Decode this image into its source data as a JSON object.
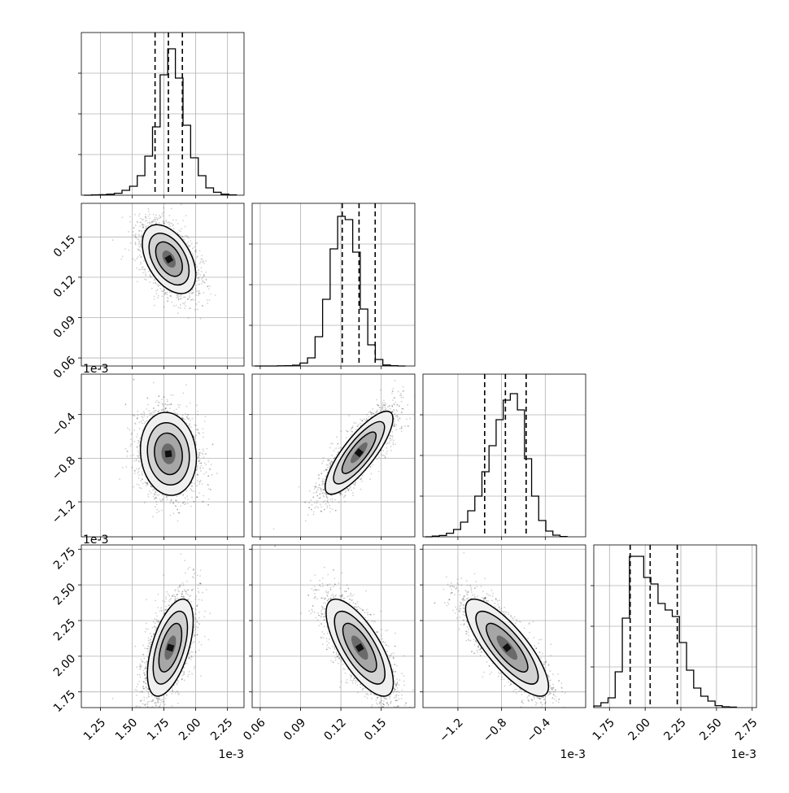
{
  "chart_data": {
    "type": "corner",
    "grid": true,
    "parameters": [
      {
        "id": "p0",
        "range": [
          1.1,
          2.38
        ],
        "scale_label": "1e-3",
        "ticks": [
          1.25,
          1.5,
          1.75,
          2.0,
          2.25
        ],
        "tick_labels": [
          "1.25",
          "1.50",
          "1.75",
          "2.00",
          "2.25"
        ]
      },
      {
        "id": "p1",
        "range": [
          0.054,
          0.175
        ],
        "scale_label": "",
        "ticks": [
          0.06,
          0.09,
          0.12,
          0.15
        ],
        "tick_labels": [
          "0.06",
          "0.09",
          "0.12",
          "0.15"
        ]
      },
      {
        "id": "p2",
        "range": [
          -1.52,
          -0.03
        ],
        "scale_label": "1e-3",
        "ticks": [
          -1.2,
          -0.8,
          -0.4
        ],
        "tick_labels": [
          "−1.2",
          "−0.8",
          "−0.4"
        ]
      },
      {
        "id": "p3",
        "range": [
          1.64,
          2.78
        ],
        "scale_label": "1e-3",
        "ticks": [
          1.75,
          2.0,
          2.25,
          2.5,
          2.75
        ],
        "tick_labels": [
          "1.75",
          "2.00",
          "2.25",
          "2.50",
          "2.75"
        ]
      }
    ],
    "histograms": [
      {
        "param": "p0",
        "bins": [
          1.12,
          1.18,
          1.24,
          1.3,
          1.36,
          1.42,
          1.48,
          1.54,
          1.6,
          1.66,
          1.72,
          1.78,
          1.84,
          1.9,
          1.96,
          2.02,
          2.08,
          2.14,
          2.2,
          2.26,
          2.32
        ],
        "counts": [
          0,
          2,
          3,
          6,
          12,
          30,
          55,
          120,
          240,
          420,
          740,
          900,
          720,
          430,
          230,
          120,
          45,
          18,
          6,
          2
        ],
        "ymax": 1000,
        "quantiles": [
          1.68,
          1.785,
          1.895
        ]
      },
      {
        "param": "p1",
        "bins": [
          0.056,
          0.0616,
          0.0672,
          0.0728,
          0.0784,
          0.084,
          0.0896,
          0.0952,
          0.1008,
          0.1064,
          0.112,
          0.1176,
          0.1232,
          0.1288,
          0.1344,
          0.14,
          0.1456,
          0.1512,
          0.1568,
          0.1624,
          0.168
        ],
        "counts": [
          0,
          0,
          0,
          1,
          2,
          5,
          18,
          50,
          180,
          410,
          720,
          920,
          900,
          700,
          350,
          130,
          40,
          6,
          2,
          0
        ],
        "ymax": 1000,
        "quantiles": [
          0.121,
          0.1335,
          0.1455
        ]
      },
      {
        "param": "p2",
        "bins": [
          -1.5,
          -1.435,
          -1.37,
          -1.305,
          -1.24,
          -1.175,
          -1.11,
          -1.045,
          -0.98,
          -0.915,
          -0.85,
          -0.785,
          -0.72,
          -0.655,
          -0.59,
          -0.525,
          -0.46,
          -0.395,
          -0.33,
          -0.265,
          -0.2
        ],
        "counts": [
          0,
          4,
          8,
          22,
          45,
          90,
          160,
          250,
          400,
          560,
          720,
          840,
          880,
          780,
          480,
          250,
          100,
          35,
          10,
          2
        ],
        "ymax": 1000,
        "quantiles": [
          -0.955,
          -0.765,
          -0.575
        ]
      },
      {
        "param": "p3",
        "bins": [
          1.64,
          1.69,
          1.74,
          1.79,
          1.84,
          1.89,
          1.94,
          1.99,
          2.04,
          2.09,
          2.14,
          2.19,
          2.24,
          2.29,
          2.34,
          2.39,
          2.44,
          2.49,
          2.54,
          2.59,
          2.64
        ],
        "counts": [
          10,
          30,
          60,
          220,
          550,
          930,
          930,
          800,
          760,
          640,
          600,
          560,
          400,
          230,
          120,
          70,
          40,
          12,
          5,
          3
        ],
        "ymax": 1000,
        "quantiles": [
          1.895,
          2.035,
          2.225
        ]
      }
    ],
    "pairs": [
      {
        "x": "p0",
        "y": "p1",
        "mean": [
          1.79,
          0.1335
        ],
        "sd": [
          0.105,
          0.0128
        ],
        "rho": -0.45
      },
      {
        "x": "p0",
        "y": "p2",
        "mean": [
          1.785,
          -0.76
        ],
        "sd": [
          0.11,
          0.19
        ],
        "rho": -0.1
      },
      {
        "x": "p1",
        "y": "p2",
        "mean": [
          0.1335,
          -0.75
        ],
        "sd": [
          0.0126,
          0.19
        ],
        "rho": 0.82
      },
      {
        "x": "p0",
        "y": "p3",
        "mean": [
          1.8,
          2.06
        ],
        "sd": [
          0.09,
          0.17
        ],
        "rho": 0.55
      },
      {
        "x": "p1",
        "y": "p3",
        "mean": [
          0.134,
          2.06
        ],
        "sd": [
          0.0125,
          0.17
        ],
        "rho": -0.72
      },
      {
        "x": "p2",
        "y": "p3",
        "mean": [
          -0.75,
          2.06
        ],
        "sd": [
          0.19,
          0.17
        ],
        "rho": -0.8
      }
    ]
  }
}
